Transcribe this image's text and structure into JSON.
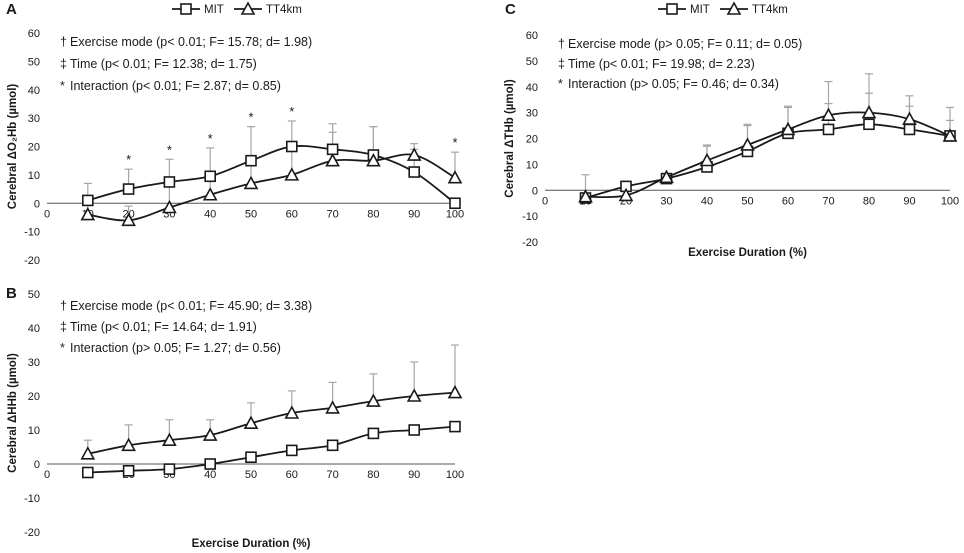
{
  "chart_data": [
    {
      "panel": "A",
      "type": "line",
      "ylabel": "Cerebral ΔO₂Hb (µmol)",
      "xlabel": "",
      "xlim": [
        0,
        100
      ],
      "ylim": [
        -20,
        60
      ],
      "xticks": [
        0,
        10,
        20,
        30,
        40,
        50,
        60,
        70,
        80,
        90,
        100
      ],
      "yticks": [
        -20,
        -10,
        0,
        10,
        20,
        30,
        40,
        50,
        60
      ],
      "x": [
        10,
        20,
        30,
        40,
        50,
        60,
        70,
        80,
        90,
        100
      ],
      "series": [
        {
          "name": "MIT",
          "marker": "square",
          "values": [
            1,
            5,
            7.5,
            9.5,
            15,
            20,
            19,
            17,
            11,
            0
          ],
          "err": [
            6,
            7,
            8,
            10,
            12,
            9,
            9,
            10,
            8,
            0
          ]
        },
        {
          "name": "TT4km",
          "marker": "triangle",
          "values": [
            -4,
            -6,
            -1.5,
            3,
            7,
            10,
            15,
            15,
            17,
            9
          ],
          "err": [
            6,
            5,
            8,
            8,
            8,
            9,
            10,
            12,
            4,
            9
          ]
        }
      ],
      "significance_x": [
        20,
        30,
        40,
        50,
        60,
        100
      ],
      "significance_mark": "*",
      "annotations": [
        {
          "symbol": "†",
          "text": "Exercise mode (p< 0.01; F= 15.78; d= 1.98)"
        },
        {
          "symbol": "‡",
          "text": "Time (p< 0.01; F= 12.38; d= 1.75)"
        },
        {
          "symbol": "*",
          "text": "Interaction (p< 0.01; F= 2.87; d= 0.85)"
        }
      ]
    },
    {
      "panel": "B",
      "type": "line",
      "ylabel": "Cerebral ΔHHb (µmol)",
      "xlabel": "Exercise Duration (%)",
      "xlim": [
        0,
        100
      ],
      "ylim": [
        -20,
        50
      ],
      "xticks": [
        0,
        10,
        20,
        30,
        40,
        50,
        60,
        70,
        80,
        90,
        100
      ],
      "yticks": [
        -20,
        -10,
        0,
        10,
        20,
        30,
        40,
        50
      ],
      "x": [
        10,
        20,
        30,
        40,
        50,
        60,
        70,
        80,
        90,
        100
      ],
      "series": [
        {
          "name": "MIT",
          "marker": "square",
          "values": [
            -2.5,
            -2,
            -1.5,
            0,
            2,
            4,
            5.5,
            9,
            10,
            11
          ],
          "err": [
            0,
            0,
            0,
            0,
            0,
            0,
            0,
            0,
            0,
            0
          ]
        },
        {
          "name": "TT4km",
          "marker": "triangle",
          "values": [
            3,
            5.5,
            7,
            8.5,
            12,
            15,
            16.5,
            18.5,
            20,
            21
          ],
          "err": [
            4,
            6,
            6,
            4.5,
            6,
            6.5,
            7.5,
            8,
            10,
            14
          ]
        }
      ],
      "annotations": [
        {
          "symbol": "†",
          "text": "Exercise mode (p< 0.01; F= 45.90; d= 3.38)"
        },
        {
          "symbol": "‡",
          "text": "Time (p< 0.01; F= 14.64; d= 1.91)"
        },
        {
          "symbol": "*",
          "text": "Interaction (p> 0.05; F= 1.27; d= 0.56)"
        }
      ]
    },
    {
      "panel": "C",
      "type": "line",
      "ylabel": "Cerebral ΔTHb (µmol)",
      "xlabel": "Exercise Duration (%)",
      "xlim": [
        0,
        100
      ],
      "ylim": [
        -20,
        60
      ],
      "xticks": [
        0,
        10,
        20,
        30,
        40,
        50,
        60,
        70,
        80,
        90,
        100
      ],
      "yticks": [
        -20,
        -10,
        0,
        10,
        20,
        30,
        40,
        50,
        60
      ],
      "x": [
        10,
        20,
        30,
        40,
        50,
        60,
        70,
        80,
        90,
        100
      ],
      "series": [
        {
          "name": "MIT",
          "marker": "square",
          "values": [
            -3,
            1.5,
            4.5,
            9,
            15,
            22,
            23.5,
            25.5,
            23.5,
            21
          ],
          "err": [
            9,
            0,
            2,
            8,
            10,
            10,
            10,
            12,
            9,
            6
          ]
        },
        {
          "name": "TT4km",
          "marker": "triangle",
          "values": [
            -2.5,
            -2,
            5,
            11.5,
            17.5,
            23.5,
            29,
            30,
            27.5,
            21
          ],
          "err": [
            0,
            0,
            0,
            6,
            8,
            9,
            13,
            15,
            9,
            11
          ]
        }
      ],
      "annotations": [
        {
          "symbol": "†",
          "text": "Exercise mode (p> 0.05; F= 0.11; d= 0.05)"
        },
        {
          "symbol": "‡",
          "text": "Time (p< 0.01; F= 19.98; d= 2.23)"
        },
        {
          "symbol": "*",
          "text": "Interaction (p> 0.05; F= 0.46; d= 0.34)"
        }
      ]
    }
  ],
  "colors": {
    "line": "#1a1a1a",
    "errorbar": "#a6a6a6",
    "background": "#ffffff"
  }
}
